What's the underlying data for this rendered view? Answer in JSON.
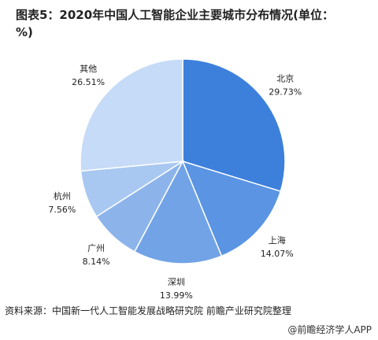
{
  "chart_data": {
    "type": "pie",
    "title": "图表5：2020年中国人工智能企业主要城市分布情况(单位：%)",
    "categories": [
      "北京",
      "上海",
      "深圳",
      "广州",
      "杭州",
      "其他"
    ],
    "values": [
      29.73,
      14.07,
      13.99,
      8.14,
      7.56,
      26.51
    ],
    "value_labels": [
      "29.73%",
      "14.07%",
      "13.99%",
      "8.14%",
      "7.56%",
      "26.51%"
    ],
    "colors": [
      "#3d80dc",
      "#5a94e2",
      "#72a3e6",
      "#8cb4eb",
      "#a8c8f1",
      "#c6dbf7"
    ],
    "source": "资料来源：中国新一代人工智能发展战略研究院 前瞻产业研究院整理",
    "footer": "@前瞻经济学人APP"
  }
}
